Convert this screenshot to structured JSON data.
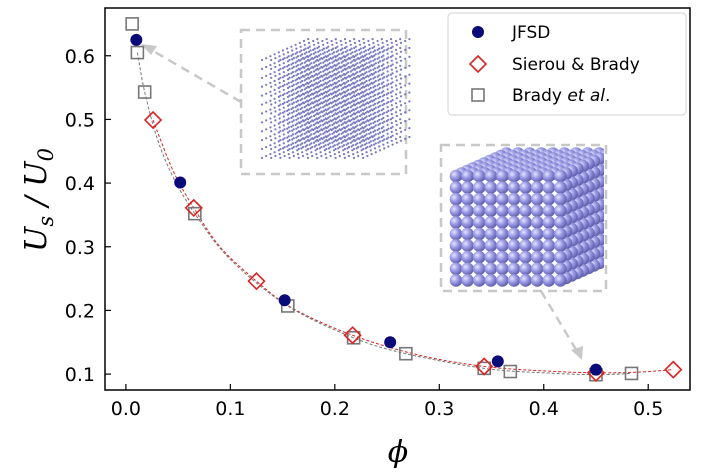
{
  "chart_data": {
    "type": "scatter",
    "title": "",
    "xlabel": "ϕ",
    "ylabel": "U_s / U_0",
    "xlim": [
      -0.02,
      0.54
    ],
    "ylim": [
      0.075,
      0.675
    ],
    "x_ticks": [
      "0.0",
      "0.1",
      "0.2",
      "0.3",
      "0.4",
      "0.5"
    ],
    "y_ticks": [
      "0.1",
      "0.2",
      "0.3",
      "0.4",
      "0.5",
      "0.6"
    ],
    "legend": {
      "position": "top-right",
      "entries": [
        {
          "label": "JFSD"
        },
        {
          "label": "Sierou & Brady"
        },
        {
          "label_prefix": "Brady ",
          "label_italic": "et al",
          "label_suffix": "."
        }
      ]
    },
    "series": [
      {
        "name": "JFSD",
        "marker": "circle",
        "color": "#0a0a78",
        "x": [
          0.01,
          0.052,
          0.152,
          0.253,
          0.356,
          0.45
        ],
        "y": [
          0.625,
          0.401,
          0.216,
          0.15,
          0.12,
          0.107
        ]
      },
      {
        "name": "Sierou & Brady",
        "marker": "diamond",
        "color": "#dd2222",
        "x": [
          0.026,
          0.065,
          0.125,
          0.217,
          0.343,
          0.45,
          0.524
        ],
        "y": [
          0.499,
          0.361,
          0.246,
          0.161,
          0.112,
          0.102,
          0.107
        ]
      },
      {
        "name": "Brady et al.",
        "marker": "square",
        "color": "#777777",
        "x": [
          0.006,
          0.011,
          0.018,
          0.066,
          0.155,
          0.218,
          0.268,
          0.343,
          0.368,
          0.45,
          0.484
        ],
        "y": [
          0.65,
          0.605,
          0.543,
          0.352,
          0.207,
          0.157,
          0.132,
          0.109,
          0.104,
          0.099,
          0.101
        ]
      }
    ],
    "fit_curves": [
      {
        "name": "Sierou & Brady fit",
        "color": "#dd2222",
        "x": [
          0.026,
          0.045,
          0.065,
          0.09,
          0.125,
          0.16,
          0.217,
          0.28,
          0.343,
          0.4,
          0.45,
          0.49,
          0.524
        ],
        "y": [
          0.499,
          0.42,
          0.361,
          0.3,
          0.246,
          0.203,
          0.161,
          0.13,
          0.112,
          0.105,
          0.102,
          0.103,
          0.107
        ]
      },
      {
        "name": "Brady et al. fit",
        "color": "#777777",
        "x": [
          0.011,
          0.018,
          0.03,
          0.045,
          0.066,
          0.1,
          0.155,
          0.218,
          0.268,
          0.343,
          0.4,
          0.45,
          0.484
        ],
        "y": [
          0.605,
          0.543,
          0.47,
          0.41,
          0.352,
          0.28,
          0.207,
          0.157,
          0.132,
          0.109,
          0.102,
          0.099,
          0.101
        ]
      }
    ],
    "insets": [
      {
        "name": "dilute-lattice",
        "points_to": {
          "x": 0.01,
          "y": 0.625
        }
      },
      {
        "name": "dense-lattice",
        "points_to": {
          "x": 0.45,
          "y": 0.107
        }
      }
    ]
  }
}
